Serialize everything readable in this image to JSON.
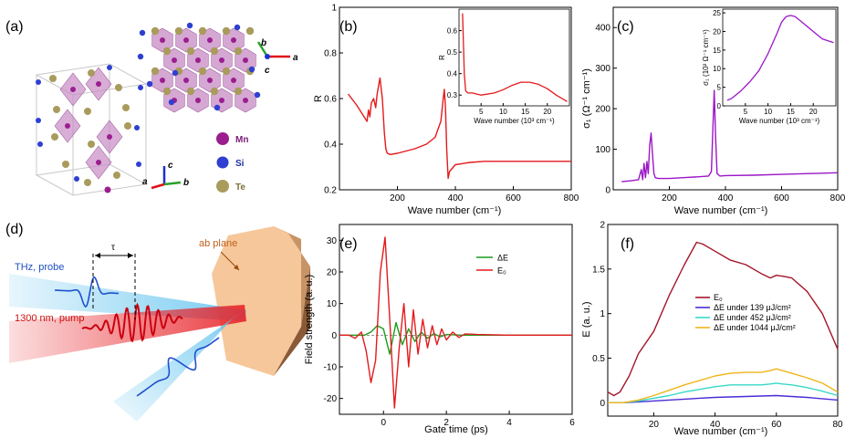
{
  "panels": {
    "a": {
      "label": "(a)",
      "legend": [
        {
          "label": "Mn",
          "color": "#9b1e8f"
        },
        {
          "label": "Si",
          "color": "#2e3fd1"
        },
        {
          "label": "Te",
          "color": "#a99b5c"
        }
      ],
      "axes_top": [
        "b",
        "a",
        "c"
      ],
      "axes_bottom": [
        "a",
        "c",
        "b"
      ],
      "colors": {
        "octahedra": "#c78bc4",
        "axis_red": "#e0101a",
        "axis_green": "#2aa12a",
        "axis_blue": "#1e2fd0"
      }
    },
    "b": {
      "label": "(b)",
      "inset_ylabel": "R",
      "inset_xlabel": "Wave number (10³ cm⁻¹)"
    },
    "c": {
      "label": "(c)",
      "inset_ylabel": "σ₁ (10² Ω⁻¹ cm⁻¹)",
      "inset_xlabel": "Wave number (10³ cm⁻¹)"
    },
    "d": {
      "label": "(d)",
      "probe_label": "THz, probe",
      "pump_label": "1300 nm, pump",
      "tau_label": "τ",
      "plane_label": "ab plane",
      "colors": {
        "probe": "#5fc2ee",
        "pump": "#e8242a",
        "crystal": "#f6c79a",
        "crystal_side": "#9a6a45"
      }
    },
    "e": {
      "label": "(e)"
    },
    "f": {
      "label": "(f)"
    }
  },
  "chart_data": [
    {
      "id": "b",
      "type": "line",
      "xlabel": "Wave number (cm⁻¹)",
      "ylabel": "R",
      "xlim": [
        0,
        800
      ],
      "ylim": [
        0.2,
        1.0
      ],
      "xticks": [
        200,
        400,
        600,
        800
      ],
      "yticks": [
        0.2,
        0.4,
        0.6,
        0.8,
        1.0
      ],
      "series": [
        {
          "color": "#e41a1c",
          "x": [
            30,
            60,
            80,
            95,
            100,
            105,
            110,
            118,
            125,
            130,
            140,
            148,
            155,
            160,
            165,
            175,
            200,
            230,
            260,
            300,
            330,
            350,
            358,
            362,
            366,
            370,
            375,
            380,
            400,
            450,
            500,
            600,
            700,
            800
          ],
          "y": [
            0.62,
            0.57,
            0.53,
            0.5,
            0.55,
            0.52,
            0.58,
            0.6,
            0.56,
            0.62,
            0.69,
            0.6,
            0.45,
            0.38,
            0.36,
            0.355,
            0.36,
            0.37,
            0.38,
            0.4,
            0.43,
            0.5,
            0.6,
            0.64,
            0.56,
            0.38,
            0.25,
            0.28,
            0.31,
            0.32,
            0.325,
            0.325,
            0.325,
            0.325
          ]
        }
      ],
      "inset": {
        "xlim": [
          0,
          25
        ],
        "ylim": [
          0.25,
          0.7
        ],
        "xticks": [
          5,
          10,
          15,
          20
        ],
        "yticks": [
          0.3,
          0.4,
          0.5,
          0.6
        ],
        "x": [
          0.8,
          1.2,
          1.5,
          2,
          3,
          5,
          8,
          10,
          12,
          14,
          16,
          18,
          20,
          22,
          24.5
        ],
        "y": [
          0.68,
          0.4,
          0.32,
          0.31,
          0.31,
          0.3,
          0.31,
          0.325,
          0.345,
          0.36,
          0.36,
          0.35,
          0.33,
          0.3,
          0.27
        ]
      }
    },
    {
      "id": "c",
      "type": "line",
      "xlabel": "Wave number (cm⁻¹)",
      "ylabel": "σ₁ (Ω⁻¹ cm⁻¹)",
      "xlim": [
        0,
        800
      ],
      "ylim": [
        0,
        450
      ],
      "xticks": [
        200,
        400,
        600,
        800
      ],
      "yticks": [
        0,
        100,
        200,
        300,
        400
      ],
      "series": [
        {
          "color": "#9b16c8",
          "x": [
            30,
            60,
            90,
            100,
            105,
            110,
            115,
            120,
            125,
            130,
            135,
            140,
            145,
            150,
            160,
            200,
            250,
            300,
            340,
            350,
            355,
            360,
            365,
            370,
            380,
            400,
            500,
            600,
            700,
            800
          ],
          "y": [
            20,
            22,
            25,
            50,
            25,
            65,
            30,
            70,
            40,
            110,
            140,
            90,
            40,
            30,
            28,
            28,
            30,
            32,
            34,
            45,
            150,
            245,
            130,
            40,
            34,
            35,
            36,
            38,
            40,
            42
          ]
        }
      ],
      "inset": {
        "xlim": [
          0,
          25
        ],
        "ylim": [
          0,
          26
        ],
        "xticks": [
          5,
          10,
          15,
          20
        ],
        "yticks": [
          0,
          5,
          10,
          15,
          20,
          25
        ],
        "x": [
          1,
          2,
          4,
          6,
          8,
          10,
          12,
          13,
          14,
          15,
          16,
          18,
          20,
          22,
          24.5
        ],
        "y": [
          1.5,
          2,
          4,
          6.5,
          9.5,
          14,
          19.5,
          22.5,
          24,
          24.3,
          24,
          22,
          20,
          18,
          17
        ]
      }
    },
    {
      "id": "e",
      "type": "line",
      "xlabel": "Gate time (ps)",
      "ylabel": "Field strength (a. u.)",
      "xlim": [
        -1.4,
        6
      ],
      "ylim": [
        -25,
        35
      ],
      "xticks": [
        0,
        2,
        4,
        6
      ],
      "yticks": [
        -20,
        -10,
        0,
        10,
        20,
        30
      ],
      "series": [
        {
          "name": "ΔE",
          "color": "#1c9c1c",
          "x": [
            -1.4,
            -0.6,
            -0.4,
            -0.2,
            0,
            0.2,
            0.4,
            0.6,
            0.8,
            1.0,
            1.2,
            1.4,
            1.6,
            1.8,
            2.0,
            2.5,
            3,
            6
          ],
          "y": [
            0,
            0,
            1,
            3,
            2,
            -6,
            4,
            -3,
            2,
            -2,
            1,
            -1,
            0.5,
            -0.5,
            0.2,
            0,
            0,
            0
          ]
        },
        {
          "name": "E₀",
          "color": "#e41a1c",
          "x": [
            -1.4,
            -1.1,
            -0.9,
            -0.7,
            -0.55,
            -0.4,
            -0.25,
            -0.1,
            0.05,
            0.2,
            0.35,
            0.5,
            0.65,
            0.8,
            0.95,
            1.1,
            1.25,
            1.4,
            1.55,
            1.7,
            1.85,
            2.0,
            2.2,
            2.4,
            2.6,
            3,
            4,
            6
          ],
          "y": [
            0,
            0,
            -1,
            1,
            -5,
            -15,
            -8,
            20,
            31,
            5,
            -23,
            -4,
            10,
            -10,
            8,
            -6,
            5,
            -4,
            3,
            -3,
            2,
            -1.5,
            1,
            -0.7,
            0.4,
            0.2,
            0,
            0
          ]
        }
      ]
    },
    {
      "id": "f",
      "type": "line",
      "xlabel": "Wave number (cm⁻¹)",
      "ylabel": "E (a. u.)",
      "xlim": [
        5,
        80
      ],
      "ylim": [
        -0.15,
        2.0
      ],
      "xticks": [
        20,
        40,
        60,
        80
      ],
      "yticks": [
        0.0,
        0.5,
        1.0,
        1.5,
        2.0
      ],
      "legend_position": "center-right",
      "series": [
        {
          "name": "E₀",
          "color": "#a3172a",
          "x": [
            5,
            7,
            9,
            12,
            15,
            20,
            25,
            30,
            34,
            36,
            40,
            45,
            50,
            55,
            58,
            60,
            62,
            65,
            70,
            75,
            80
          ],
          "y": [
            0.12,
            0.08,
            0.12,
            0.3,
            0.55,
            0.8,
            1.2,
            1.55,
            1.8,
            1.78,
            1.7,
            1.6,
            1.55,
            1.45,
            1.4,
            1.43,
            1.42,
            1.4,
            1.25,
            1.0,
            0.6
          ]
        },
        {
          "name": "ΔE under 139  μJ/cm²",
          "color": "#4c2bd6",
          "x": [
            5,
            10,
            15,
            20,
            30,
            40,
            50,
            60,
            70,
            80
          ],
          "y": [
            0.0,
            0.0,
            0.01,
            0.02,
            0.04,
            0.06,
            0.07,
            0.08,
            0.06,
            0.03
          ]
        },
        {
          "name": "ΔE under 452 μJ/cm²",
          "color": "#38d9c8",
          "x": [
            5,
            10,
            15,
            20,
            25,
            30,
            35,
            40,
            45,
            50,
            55,
            58,
            60,
            62,
            65,
            70,
            75,
            80
          ],
          "y": [
            0.0,
            0.0,
            0.02,
            0.05,
            0.08,
            0.12,
            0.15,
            0.18,
            0.2,
            0.2,
            0.2,
            0.21,
            0.22,
            0.21,
            0.2,
            0.17,
            0.13,
            0.08
          ]
        },
        {
          "name": "ΔE under 1044 μJ/cm²",
          "color": "#f0b51c",
          "x": [
            5,
            10,
            15,
            20,
            25,
            30,
            35,
            40,
            45,
            50,
            55,
            58,
            60,
            62,
            65,
            70,
            75,
            80
          ],
          "y": [
            0.0,
            0.0,
            0.03,
            0.08,
            0.14,
            0.2,
            0.25,
            0.3,
            0.33,
            0.34,
            0.34,
            0.36,
            0.38,
            0.36,
            0.33,
            0.28,
            0.22,
            0.12
          ]
        }
      ]
    }
  ]
}
